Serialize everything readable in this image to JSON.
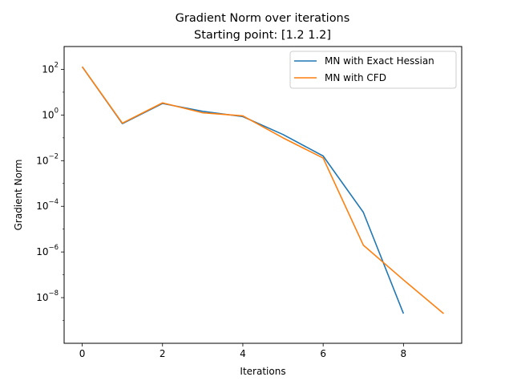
{
  "chart_data": {
    "type": "line",
    "title": "Gradient Norm over iterations",
    "subtitle": "Starting point: [1.2 1.2]",
    "xlabel": "Iterations",
    "ylabel": "Gradient Norm",
    "xlim": [
      -0.45,
      9.45
    ],
    "ylim": [
      1e-10,
      1000.0
    ],
    "yscale": "log",
    "xticks": [
      0,
      2,
      4,
      6,
      8
    ],
    "xtick_labels": [
      "0",
      "2",
      "4",
      "6",
      "8"
    ],
    "yticks": [
      100.0,
      1,
      0.01,
      0.0001,
      1e-06,
      1e-08
    ],
    "ytick_labels": [
      {
        "base": "10",
        "exp": "2"
      },
      {
        "base": "10",
        "exp": "0"
      },
      {
        "base": "10",
        "exp": "−2"
      },
      {
        "base": "10",
        "exp": "−4"
      },
      {
        "base": "10",
        "exp": "−6"
      },
      {
        "base": "10",
        "exp": "−8"
      }
    ],
    "grid": false,
    "legend_position": "top-right",
    "series": [
      {
        "name": "MN with Exact Hessian",
        "color": "#1f77b4",
        "x": [
          0,
          1,
          2,
          3,
          4,
          5,
          6,
          7,
          8
        ],
        "y": [
          130,
          0.42,
          3.2,
          1.45,
          0.85,
          0.14,
          0.016,
          5.5e-05,
          2e-09
        ]
      },
      {
        "name": "MN with CFD",
        "color": "#ff7f0e",
        "x": [
          0,
          1,
          2,
          3,
          4,
          5,
          6,
          7,
          8,
          9
        ],
        "y": [
          130,
          0.44,
          3.4,
          1.25,
          0.92,
          0.1,
          0.013,
          2e-06,
          6e-08,
          2e-09
        ]
      }
    ]
  }
}
